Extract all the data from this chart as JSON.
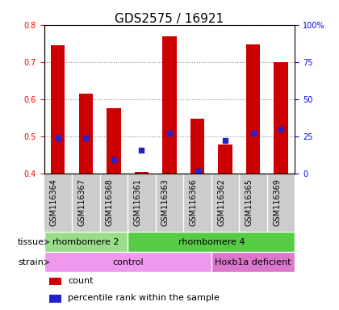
{
  "title": "GDS2575 / 16921",
  "samples": [
    "GSM116364",
    "GSM116367",
    "GSM116368",
    "GSM116361",
    "GSM116363",
    "GSM116366",
    "GSM116362",
    "GSM116365",
    "GSM116369"
  ],
  "counts": [
    0.745,
    0.615,
    0.575,
    0.405,
    0.77,
    0.548,
    0.478,
    0.748,
    0.7
  ],
  "percentile_ranks_pct": [
    24.0,
    24.0,
    9.0,
    15.5,
    27.0,
    1.5,
    22.5,
    27.0,
    30.0
  ],
  "count_base": 0.4,
  "ylim": [
    0.4,
    0.8
  ],
  "yticks": [
    0.4,
    0.5,
    0.6,
    0.7,
    0.8
  ],
  "right_yticks": [
    0,
    25,
    50,
    75,
    100
  ],
  "right_yticklabels": [
    "0",
    "25",
    "50",
    "75",
    "100%"
  ],
  "bar_color": "#cc0000",
  "dot_color": "#2222cc",
  "bar_width": 0.5,
  "tissue_labels": [
    {
      "text": "rhombomere 2",
      "start": 0,
      "end": 2,
      "color": "#99dd88"
    },
    {
      "text": "rhombomere 4",
      "start": 3,
      "end": 8,
      "color": "#55cc44"
    }
  ],
  "strain_labels": [
    {
      "text": "control",
      "start": 0,
      "end": 5,
      "color": "#ee99ee"
    },
    {
      "text": "Hoxb1a deficient",
      "start": 6,
      "end": 8,
      "color": "#dd77cc"
    }
  ],
  "legend_items": [
    {
      "color": "#cc0000",
      "label": "count"
    },
    {
      "color": "#2222cc",
      "label": "percentile rank within the sample"
    }
  ],
  "title_fontsize": 11,
  "tick_fontsize": 7,
  "label_fontsize": 8,
  "annotation_fontsize": 8,
  "grey_bg": "#cccccc"
}
